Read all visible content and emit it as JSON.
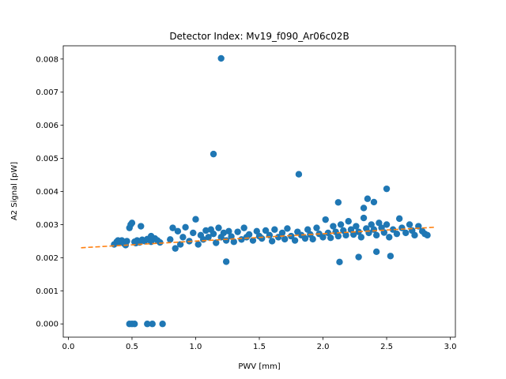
{
  "chart_data": {
    "type": "scatter",
    "title": "Detector Index: Mv19_f090_Ar06c02B",
    "xlabel": "PWV [mm]",
    "ylabel": "A2 Signal [pW]",
    "xlim": [
      -0.04,
      3.04
    ],
    "ylim": [
      -0.0004,
      0.0084
    ],
    "xticks": [
      0.0,
      0.5,
      1.0,
      1.5,
      2.0,
      2.5,
      3.0
    ],
    "xtick_labels": [
      "0.0",
      "0.5",
      "1.0",
      "1.5",
      "2.0",
      "2.5",
      "3.0"
    ],
    "yticks": [
      0.0,
      0.001,
      0.002,
      0.003,
      0.004,
      0.005,
      0.006,
      0.007,
      0.008
    ],
    "ytick_labels": [
      "0.000",
      "0.001",
      "0.002",
      "0.003",
      "0.004",
      "0.005",
      "0.006",
      "0.007",
      "0.008"
    ],
    "colors": {
      "points": "#1f77b4",
      "fit": "#ff7f0e"
    },
    "series": [
      {
        "name": "measurements",
        "kind": "scatter",
        "points": [
          [
            0.36,
            0.0024
          ],
          [
            0.38,
            0.00248
          ],
          [
            0.4,
            0.00245
          ],
          [
            0.42,
            0.00252
          ],
          [
            0.44,
            0.00242
          ],
          [
            0.46,
            0.0025
          ],
          [
            0.48,
            0.0029
          ],
          [
            0.49,
            0.003
          ],
          [
            0.5,
            0.00305
          ],
          [
            0.52,
            0.00248
          ],
          [
            0.54,
            0.00252
          ],
          [
            0.56,
            0.00246
          ],
          [
            0.58,
            0.00254
          ],
          [
            0.6,
            0.0025
          ],
          [
            0.62,
            0.00256
          ],
          [
            0.65,
            0.00248
          ],
          [
            0.68,
            0.00258
          ],
          [
            0.7,
            0.00252
          ],
          [
            0.72,
            0.00246
          ],
          [
            0.57,
            0.00295
          ],
          [
            0.65,
            0.00265
          ],
          [
            0.45,
            0.00238
          ],
          [
            0.39,
            0.00252
          ],
          [
            0.53,
            0.00244
          ],
          [
            0.48,
            0.0
          ],
          [
            0.5,
            0.0
          ],
          [
            0.52,
            0.0
          ],
          [
            0.62,
            0.0
          ],
          [
            0.66,
            0.0
          ],
          [
            0.74,
            0.0
          ],
          [
            0.8,
            0.00255
          ],
          [
            0.82,
            0.0029
          ],
          [
            0.84,
            0.00228
          ],
          [
            0.86,
            0.0028
          ],
          [
            0.88,
            0.0024
          ],
          [
            0.9,
            0.00262
          ],
          [
            0.92,
            0.00292
          ],
          [
            0.95,
            0.0025
          ],
          [
            0.98,
            0.00275
          ],
          [
            1.0,
            0.00316
          ],
          [
            1.02,
            0.0024
          ],
          [
            1.04,
            0.00268
          ],
          [
            1.06,
            0.00255
          ],
          [
            1.08,
            0.00282
          ],
          [
            1.1,
            0.00262
          ],
          [
            1.12,
            0.00285
          ],
          [
            1.14,
            0.00272
          ],
          [
            1.16,
            0.00245
          ],
          [
            1.18,
            0.0029
          ],
          [
            1.2,
            0.00262
          ],
          [
            1.22,
            0.00275
          ],
          [
            1.24,
            0.00252
          ],
          [
            1.26,
            0.0028
          ],
          [
            1.28,
            0.00264
          ],
          [
            1.3,
            0.00248
          ],
          [
            1.33,
            0.00278
          ],
          [
            1.36,
            0.00255
          ],
          [
            1.38,
            0.0029
          ],
          [
            1.4,
            0.00262
          ],
          [
            1.42,
            0.0027
          ],
          [
            1.45,
            0.00252
          ],
          [
            1.48,
            0.0028
          ],
          [
            1.5,
            0.00265
          ],
          [
            1.52,
            0.00258
          ],
          [
            1.55,
            0.00282
          ],
          [
            1.58,
            0.00268
          ],
          [
            1.6,
            0.0025
          ],
          [
            1.62,
            0.00285
          ],
          [
            1.65,
            0.00262
          ],
          [
            1.68,
            0.00275
          ],
          [
            1.7,
            0.00256
          ],
          [
            1.72,
            0.00288
          ],
          [
            1.75,
            0.00265
          ],
          [
            1.78,
            0.00252
          ],
          [
            1.8,
            0.00278
          ],
          [
            1.83,
            0.00268
          ],
          [
            1.86,
            0.00258
          ],
          [
            1.88,
            0.00285
          ],
          [
            1.9,
            0.0027
          ],
          [
            1.92,
            0.00256
          ],
          [
            1.95,
            0.0029
          ],
          [
            1.97,
            0.00272
          ],
          [
            2.0,
            0.00262
          ],
          [
            2.02,
            0.00315
          ],
          [
            2.04,
            0.00275
          ],
          [
            2.06,
            0.0026
          ],
          [
            2.08,
            0.00295
          ],
          [
            2.1,
            0.00278
          ],
          [
            2.12,
            0.00265
          ],
          [
            2.14,
            0.003
          ],
          [
            2.16,
            0.00282
          ],
          [
            2.18,
            0.00268
          ],
          [
            2.2,
            0.0031
          ],
          [
            2.22,
            0.00285
          ],
          [
            2.24,
            0.0027
          ],
          [
            2.26,
            0.00295
          ],
          [
            2.28,
            0.00278
          ],
          [
            2.3,
            0.00262
          ],
          [
            2.32,
            0.0032
          ],
          [
            2.34,
            0.00288
          ],
          [
            2.36,
            0.00275
          ],
          [
            2.38,
            0.003
          ],
          [
            2.4,
            0.00285
          ],
          [
            2.42,
            0.00268
          ],
          [
            2.44,
            0.00305
          ],
          [
            2.46,
            0.0029
          ],
          [
            2.48,
            0.00276
          ],
          [
            2.5,
            0.003
          ],
          [
            2.52,
            0.00262
          ],
          [
            2.55,
            0.00285
          ],
          [
            2.58,
            0.00272
          ],
          [
            2.6,
            0.00318
          ],
          [
            2.62,
            0.0029
          ],
          [
            2.65,
            0.00275
          ],
          [
            2.68,
            0.003
          ],
          [
            2.7,
            0.00282
          ],
          [
            2.72,
            0.00268
          ],
          [
            2.75,
            0.00295
          ],
          [
            2.78,
            0.0028
          ],
          [
            2.8,
            0.00272
          ],
          [
            2.82,
            0.00268
          ],
          [
            1.2,
            0.00802
          ],
          [
            1.14,
            0.00513
          ],
          [
            1.81,
            0.00452
          ],
          [
            2.12,
            0.00367
          ],
          [
            2.35,
            0.00378
          ],
          [
            2.32,
            0.0035
          ],
          [
            2.4,
            0.00368
          ],
          [
            2.5,
            0.00408
          ],
          [
            2.42,
            0.00218
          ],
          [
            2.28,
            0.00202
          ],
          [
            2.53,
            0.00205
          ],
          [
            2.13,
            0.00187
          ],
          [
            1.24,
            0.00188
          ]
        ]
      },
      {
        "name": "linear fit",
        "kind": "dashed-line",
        "x": [
          0.1,
          2.88
        ],
        "y": [
          0.0023,
          0.00292
        ]
      }
    ]
  }
}
